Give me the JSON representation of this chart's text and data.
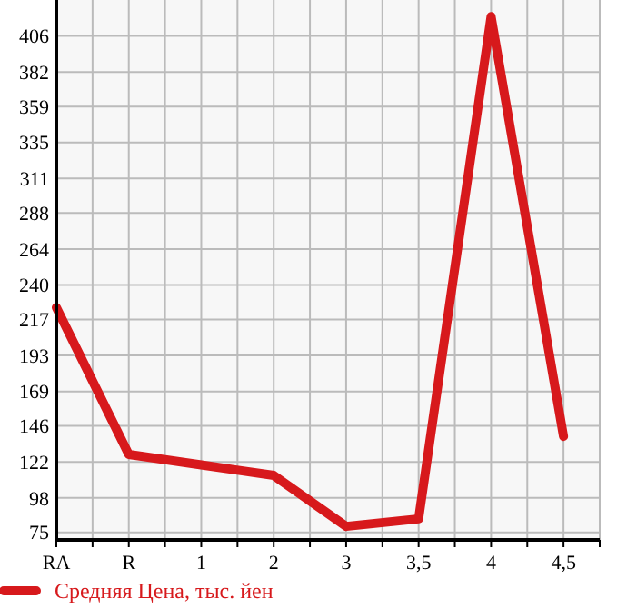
{
  "chart_data": {
    "type": "line",
    "categories": [
      "RA",
      "R",
      "1",
      "2",
      "3",
      "3,5",
      "4",
      "4,5"
    ],
    "series": [
      {
        "name": "Средняя Цена, тыс. йен",
        "color": "#d7191c",
        "values": [
          225,
          127,
          120,
          113,
          79,
          84,
          419,
          139
        ]
      }
    ],
    "ylim": [
      70,
      430
    ],
    "yticks": [
      75,
      98,
      122,
      146,
      169,
      193,
      217,
      240,
      264,
      288,
      311,
      335,
      359,
      382,
      406
    ],
    "grid": true,
    "legend": "bottom",
    "line_style": "solid"
  }
}
